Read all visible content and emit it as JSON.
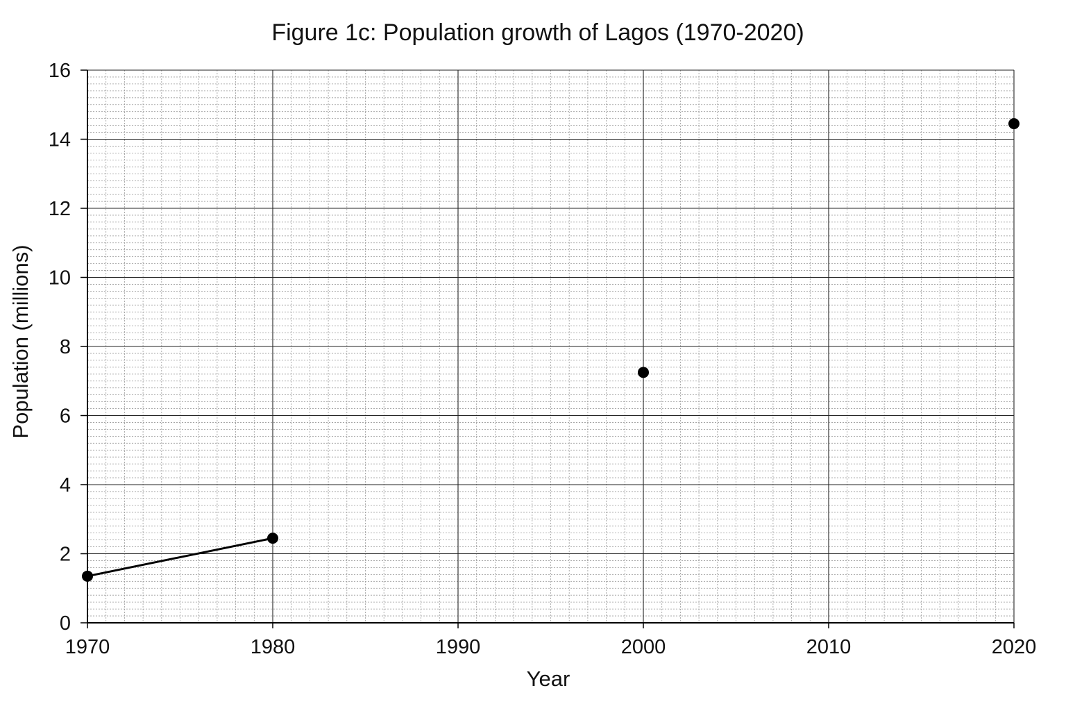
{
  "chart_data": {
    "type": "scatter",
    "title": "Figure 1c: Population growth of Lagos (1970-2020)",
    "xlabel": "Year",
    "ylabel": "Population (millions)",
    "xlim": [
      1970,
      2020
    ],
    "ylim": [
      0,
      16
    ],
    "x_ticks": [
      1970,
      1980,
      1990,
      2000,
      2010,
      2020
    ],
    "y_ticks": [
      0,
      2,
      4,
      6,
      8,
      10,
      12,
      14,
      16
    ],
    "grid": true,
    "minor_grid": true,
    "legend": "none",
    "points": [
      {
        "x": 1970,
        "y": 1.35
      },
      {
        "x": 1980,
        "y": 2.45
      },
      {
        "x": 2000,
        "y": 7.25
      },
      {
        "x": 2020,
        "y": 14.45
      }
    ],
    "line_segments": [
      {
        "from": {
          "x": 1970,
          "y": 1.35
        },
        "to": {
          "x": 1980,
          "y": 2.45
        }
      }
    ],
    "colors": {
      "marker": "#000000",
      "line": "#000000",
      "major_grid": "#222222",
      "minor_grid": "#9a9a9a"
    }
  }
}
